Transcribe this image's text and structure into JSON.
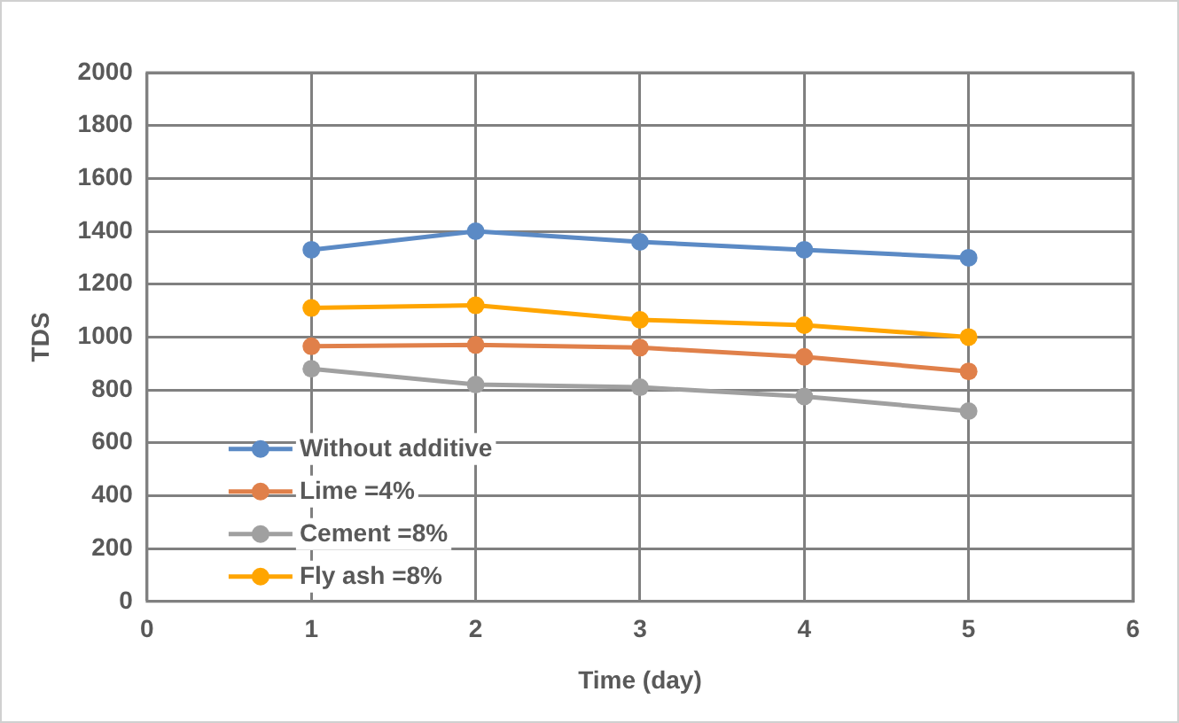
{
  "chart_data": {
    "type": "line",
    "xlabel": "Time (day)",
    "ylabel": "TDS",
    "x": [
      1,
      2,
      3,
      4,
      5
    ],
    "series": [
      {
        "name": "Without additive",
        "color": "#5b8ac5",
        "values": [
          1330,
          1400,
          1360,
          1330,
          1300
        ]
      },
      {
        "name": "Lime =4%",
        "color": "#e0804a",
        "values": [
          965,
          970,
          960,
          925,
          870
        ]
      },
      {
        "name": "Cement =8%",
        "color": "#a0a0a0",
        "values": [
          880,
          820,
          810,
          775,
          720
        ]
      },
      {
        "name": "Fly ash =8%",
        "color": "#ffa500",
        "values": [
          1110,
          1120,
          1065,
          1045,
          1000
        ]
      }
    ],
    "xlim": [
      0,
      6
    ],
    "xticks": [
      0,
      1,
      2,
      3,
      4,
      5,
      6
    ],
    "ylim": [
      0,
      2000
    ],
    "yticks": [
      0,
      200,
      400,
      600,
      800,
      1000,
      1200,
      1400,
      1600,
      1800,
      2000
    ],
    "grid": true,
    "legend": "bottom left",
    "marker": "circle",
    "line_style": "solid"
  }
}
